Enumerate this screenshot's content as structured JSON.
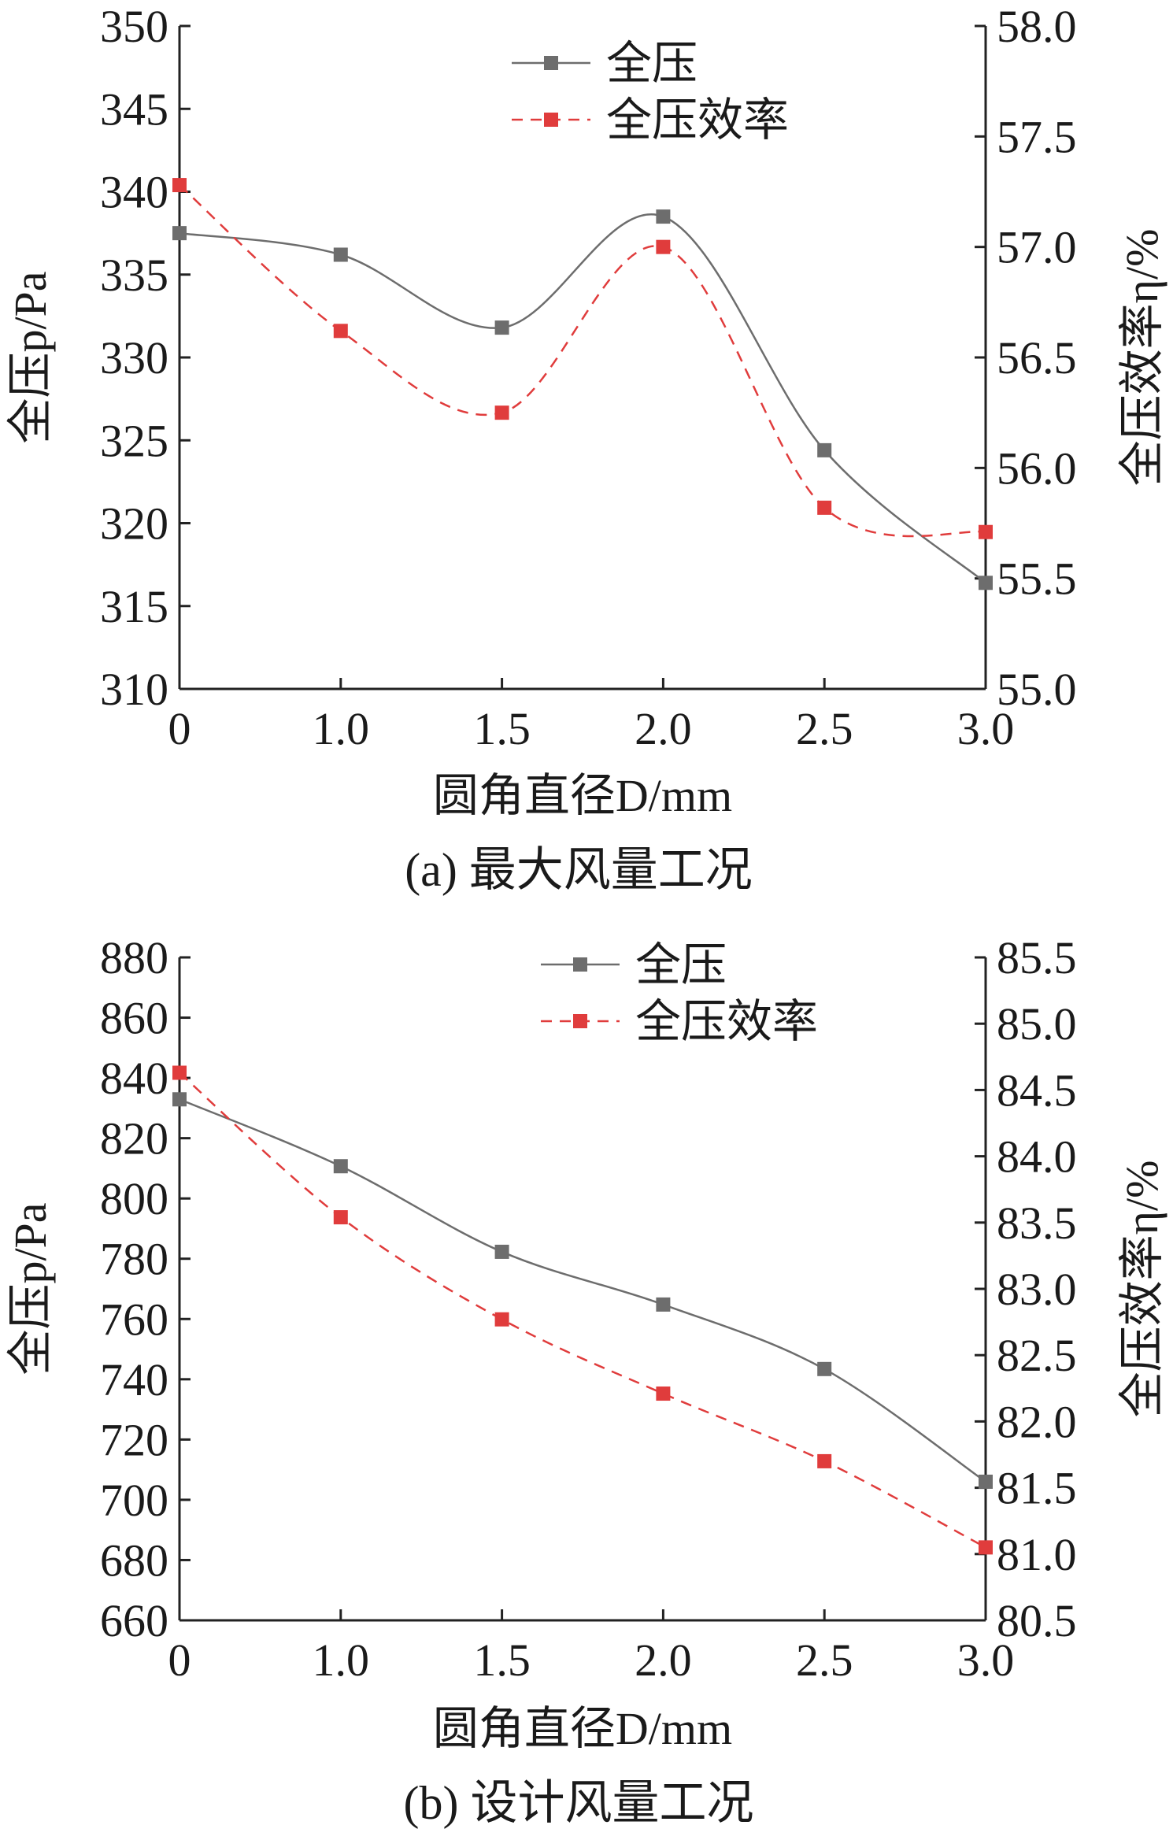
{
  "chart_data": [
    {
      "type": "line",
      "id": "a",
      "caption": "(a)  最大风量工况",
      "xlabel": "圆角直径D/mm",
      "ylabel_left": "全压p/Pa",
      "ylabel_right": "全压效率η/%",
      "x_ticks": [
        "0",
        "1.0",
        "1.5",
        "2.0",
        "2.5",
        "3.0"
      ],
      "x": [
        0,
        1.0,
        1.5,
        2.0,
        2.5,
        3.0
      ],
      "ylim_left": [
        310,
        350
      ],
      "yticks_left": [
        "310",
        "315",
        "320",
        "325",
        "330",
        "335",
        "340",
        "345",
        "350"
      ],
      "ylim_right": [
        55.0,
        58.0
      ],
      "yticks_right": [
        "55.0",
        "55.5",
        "56.0",
        "56.5",
        "57.0",
        "57.5",
        "58.0"
      ],
      "legend_position": "top-center",
      "series": [
        {
          "name": "全压",
          "axis": "left",
          "color": "#6d6d6d",
          "style": "solid",
          "values": [
            337.5,
            336.2,
            331.8,
            338.5,
            324.4,
            316.4
          ]
        },
        {
          "name": "全压效率",
          "axis": "right",
          "color": "#e03c3c",
          "style": "dashed",
          "values": [
            57.28,
            56.62,
            56.25,
            57.0,
            55.82,
            55.71
          ]
        }
      ]
    },
    {
      "type": "line",
      "id": "b",
      "caption": "(b)  设计风量工况",
      "xlabel": "圆角直径D/mm",
      "ylabel_left": "全压p/Pa",
      "ylabel_right": "全压效率η/%",
      "x_ticks": [
        "0",
        "1.0",
        "1.5",
        "2.0",
        "2.5",
        "3.0"
      ],
      "x": [
        0,
        1.0,
        1.5,
        2.0,
        2.5,
        3.0
      ],
      "ylim_left": [
        660,
        880
      ],
      "yticks_left": [
        "660",
        "680",
        "700",
        "720",
        "740",
        "760",
        "780",
        "800",
        "820",
        "840",
        "860",
        "880"
      ],
      "ylim_right": [
        80.5,
        85.5
      ],
      "yticks_right": [
        "80.5",
        "81.0",
        "81.5",
        "82.0",
        "82.5",
        "83.0",
        "83.5",
        "84.0",
        "84.5",
        "85.0",
        "85.5"
      ],
      "legend_position": "top-center",
      "series": [
        {
          "name": "全压",
          "axis": "left",
          "color": "#6d6d6d",
          "style": "solid",
          "values": [
            832.9,
            810.7,
            782.3,
            764.8,
            743.4,
            706.0
          ]
        },
        {
          "name": "全压效率",
          "axis": "right",
          "color": "#e03c3c",
          "style": "dashed",
          "values": [
            84.63,
            83.54,
            82.77,
            82.21,
            81.7,
            81.05
          ]
        }
      ]
    }
  ]
}
